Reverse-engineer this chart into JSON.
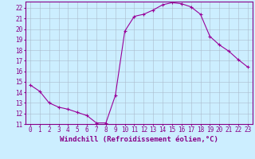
{
  "x": [
    0,
    1,
    2,
    3,
    4,
    5,
    6,
    7,
    8,
    9,
    10,
    11,
    12,
    13,
    14,
    15,
    16,
    17,
    18,
    19,
    20,
    21,
    22,
    23
  ],
  "y": [
    14.7,
    14.1,
    13.0,
    12.6,
    12.4,
    12.1,
    11.8,
    11.1,
    11.1,
    13.7,
    19.8,
    21.2,
    21.4,
    21.8,
    22.3,
    22.5,
    22.4,
    22.1,
    21.4,
    19.3,
    18.5,
    17.9,
    17.1,
    16.4
  ],
  "line_color": "#990099",
  "marker": "+",
  "bg_color": "#cceeff",
  "grid_color": "#aabbcc",
  "xlabel": "Windchill (Refroidissement éolien,°C)",
  "ylim_min": 11,
  "ylim_max": 22.6,
  "xlim_min": -0.5,
  "xlim_max": 23.5,
  "yticks": [
    11,
    12,
    13,
    14,
    15,
    16,
    17,
    18,
    19,
    20,
    21,
    22
  ],
  "xticks": [
    0,
    1,
    2,
    3,
    4,
    5,
    6,
    7,
    8,
    9,
    10,
    11,
    12,
    13,
    14,
    15,
    16,
    17,
    18,
    19,
    20,
    21,
    22,
    23
  ],
  "tick_label_fontsize": 5.5,
  "xlabel_fontsize": 6.5,
  "tick_color": "#880088",
  "axis_color": "#880088",
  "marker_size": 3,
  "linewidth": 0.8
}
